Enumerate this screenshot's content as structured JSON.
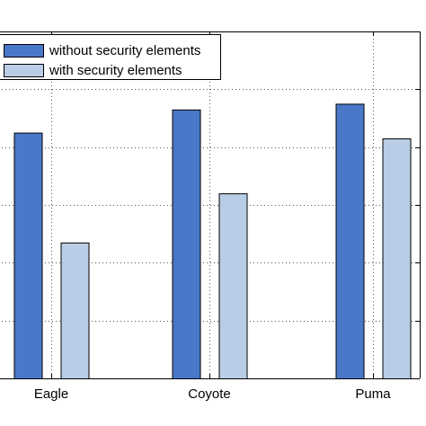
{
  "chart_data": {
    "type": "bar",
    "categories": [
      "Eagle",
      "Coyote",
      "Puma"
    ],
    "series": [
      {
        "name": "without security elements",
        "values": [
          0.85,
          0.93,
          0.95
        ],
        "color": "#4a78c8"
      },
      {
        "name": "with security elements",
        "values": [
          0.47,
          0.64,
          0.83
        ],
        "color": "#b9cde6"
      }
    ],
    "ylim": [
      0,
      1.2
    ],
    "grid": true,
    "legend": "top-left"
  }
}
